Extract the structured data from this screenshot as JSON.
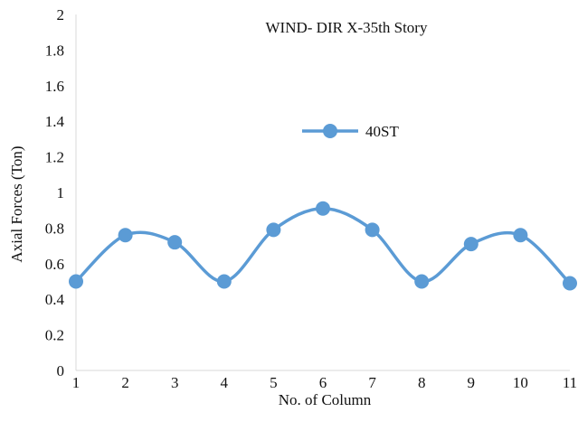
{
  "chart_data": {
    "type": "line",
    "title": "WIND- DIR X-35th Story",
    "xlabel": "No. of Column",
    "ylabel": "Axial Forces (Ton)",
    "x": [
      1,
      2,
      3,
      4,
      5,
      6,
      7,
      8,
      9,
      10,
      11
    ],
    "x_tick_labels": [
      "1",
      "2",
      "3",
      "4",
      "5",
      "6",
      "7",
      "8",
      "9",
      "10",
      "11"
    ],
    "y_ticks": [
      0,
      0.2,
      0.4,
      0.6,
      0.8,
      1,
      1.2,
      1.4,
      1.6,
      1.8,
      2
    ],
    "y_tick_labels": [
      "0",
      "0.2",
      "0.4",
      "0.6",
      "0.8",
      "1",
      "1.2",
      "1.4",
      "1.6",
      "1.8",
      "2"
    ],
    "ylim": [
      0,
      2
    ],
    "xlim": [
      1,
      11
    ],
    "grid": false,
    "legend_position": "center",
    "smooth": true,
    "series": [
      {
        "name": "40ST",
        "color": "#5b9bd5",
        "marker": "circle",
        "values": [
          0.5,
          0.76,
          0.72,
          0.5,
          0.79,
          0.91,
          0.79,
          0.5,
          0.71,
          0.76,
          0.49
        ]
      }
    ]
  }
}
